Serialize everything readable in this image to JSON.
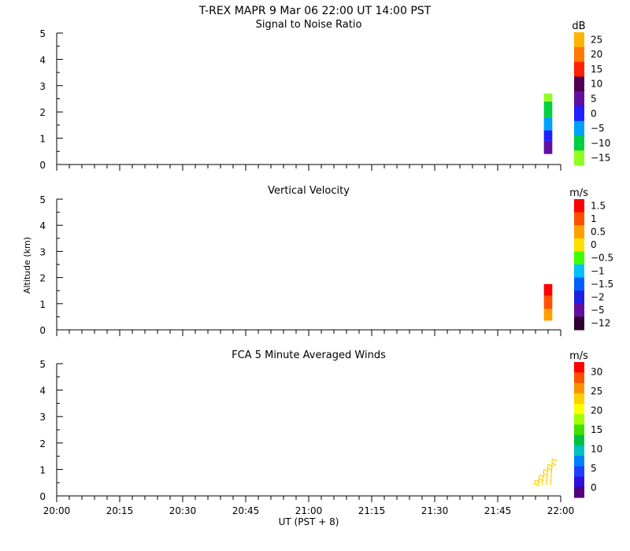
{
  "header": {
    "title": "T-REX   MAPR   9 Mar 06   22:00 UT   14:00   PST"
  },
  "x_axis": {
    "label": "UT  (PST + 8)",
    "ticks": [
      "20:00",
      "20:15",
      "20:30",
      "20:45",
      "21:00",
      "21:15",
      "21:30",
      "21:45",
      "22:00"
    ]
  },
  "y_axis_label": "Altitude (km)",
  "chart_data": [
    {
      "type": "heatmap",
      "title": "Signal to Noise Ratio",
      "ylim": [
        0,
        5
      ],
      "yticks": [
        "0",
        "1",
        "2",
        "3",
        "4",
        "5"
      ],
      "x_range": [
        "20:00",
        "22:00"
      ],
      "colorbar": {
        "unit": "dB",
        "labels": [
          "25",
          "20",
          "15",
          "10",
          "5",
          "0",
          "−5",
          "−10",
          "−15"
        ],
        "colors": [
          "#ffb400",
          "#ff7800",
          "#ff2000",
          "#500050",
          "#6010a0",
          "#2020ff",
          "#00a0ff",
          "#00d040",
          "#90ff20"
        ]
      },
      "data_columns": [
        {
          "time_start": "21:56",
          "time_end": "21:58",
          "segments": [
            {
              "alt": [
                0.4,
                0.9
              ],
              "value": 5
            },
            {
              "alt": [
                0.9,
                1.3
              ],
              "value": 0
            },
            {
              "alt": [
                1.3,
                1.8
              ],
              "value": -5
            },
            {
              "alt": [
                1.8,
                2.4
              ],
              "value": -10
            },
            {
              "alt": [
                2.4,
                2.7
              ],
              "value": -15
            }
          ]
        }
      ]
    },
    {
      "type": "heatmap",
      "title": "Vertical Velocity",
      "ylim": [
        0,
        5
      ],
      "yticks": [
        "0",
        "1",
        "2",
        "3",
        "4",
        "5"
      ],
      "x_range": [
        "20:00",
        "22:00"
      ],
      "colorbar": {
        "unit": "m/s",
        "labels": [
          "1.5",
          "1",
          "0.5",
          "0",
          "−0.5",
          "−1",
          "−1.5",
          "−2",
          "−5",
          "−12"
        ],
        "colors": [
          "#ff0000",
          "#ff5000",
          "#ffa000",
          "#ffe000",
          "#40ff00",
          "#00c0ff",
          "#0060ff",
          "#2020e0",
          "#6010a0",
          "#300030"
        ]
      },
      "data_columns": [
        {
          "time_start": "21:56",
          "time_end": "21:58",
          "segments": [
            {
              "alt": [
                0.35,
                0.8
              ],
              "value": 0.5
            },
            {
              "alt": [
                0.8,
                1.3
              ],
              "value": 1
            },
            {
              "alt": [
                1.3,
                1.75
              ],
              "value": 1.5
            }
          ]
        }
      ]
    },
    {
      "type": "wind_barbs",
      "title": "FCA 5 Minute Averaged Winds",
      "ylim": [
        0,
        5
      ],
      "yticks": [
        "0",
        "1",
        "2",
        "3",
        "4",
        "5"
      ],
      "x_range": [
        "20:00",
        "22:00"
      ],
      "colorbar": {
        "unit": "m/s",
        "labels": [
          "30",
          "25",
          "20",
          "15",
          "10",
          "5",
          "0"
        ],
        "colors": [
          "#ff0000",
          "#ff5000",
          "#ff9000",
          "#ffd000",
          "#ffff00",
          "#a0ff00",
          "#40e000",
          "#00c040",
          "#00c0c0",
          "#0080ff",
          "#2040ff",
          "#3010e0",
          "#500080"
        ]
      },
      "barbs": [
        {
          "time": "21:54",
          "alt": 0.6,
          "speed": 20
        },
        {
          "time": "21:55",
          "alt": 0.8,
          "speed": 20
        },
        {
          "time": "21:56",
          "alt": 1.0,
          "speed": 20
        },
        {
          "time": "21:57",
          "alt": 1.2,
          "speed": 20
        },
        {
          "time": "21:58",
          "alt": 1.4,
          "speed": 20
        }
      ]
    }
  ]
}
